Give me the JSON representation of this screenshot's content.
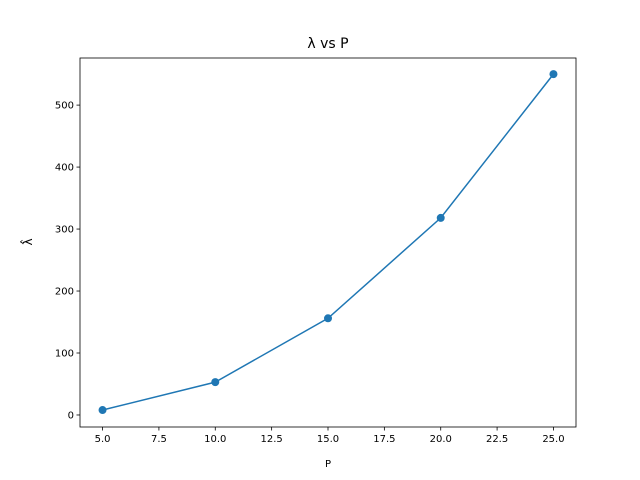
{
  "chart_data": {
    "type": "line",
    "title": "λ vs P",
    "xlabel": "P",
    "ylabel": "λ̂",
    "x": [
      5,
      10,
      15,
      20,
      25
    ],
    "series": [
      {
        "name": "λ",
        "color": "#1f77b4",
        "values": [
          8,
          53,
          156,
          318,
          550
        ]
      }
    ],
    "xlim": [
      4,
      26
    ],
    "xticks": [
      {
        "value": 5,
        "label": "5.0"
      },
      {
        "value": 7.5,
        "label": "7.5"
      },
      {
        "value": 10,
        "label": "10.0"
      },
      {
        "value": 12.5,
        "label": "12.5"
      },
      {
        "value": 15,
        "label": "15.0"
      },
      {
        "value": 17.5,
        "label": "17.5"
      },
      {
        "value": 20,
        "label": "20.0"
      },
      {
        "value": 22.5,
        "label": "22.5"
      },
      {
        "value": 25,
        "label": "25.0"
      }
    ],
    "ylim": [
      -19.4,
      576
    ],
    "yticks": [
      0,
      100,
      200,
      300,
      400,
      500
    ],
    "grid": false
  }
}
